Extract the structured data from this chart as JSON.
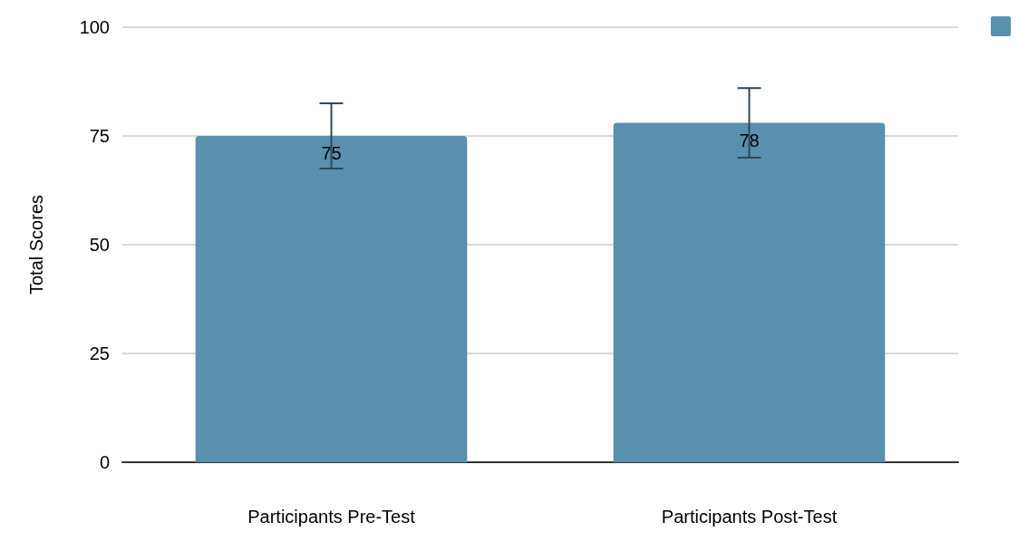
{
  "chart_data": {
    "type": "bar",
    "ylabel": "Total Scores",
    "categories": [
      "Participants Pre-Test",
      "Participants Post-Test"
    ],
    "values": [
      75,
      78
    ],
    "errors": [
      7.5,
      8
    ],
    "color": "#5990ae",
    "ylim": [
      0,
      100
    ],
    "yticks": [
      0,
      25,
      50,
      75,
      100
    ],
    "grid": "y",
    "data_labels": true
  }
}
